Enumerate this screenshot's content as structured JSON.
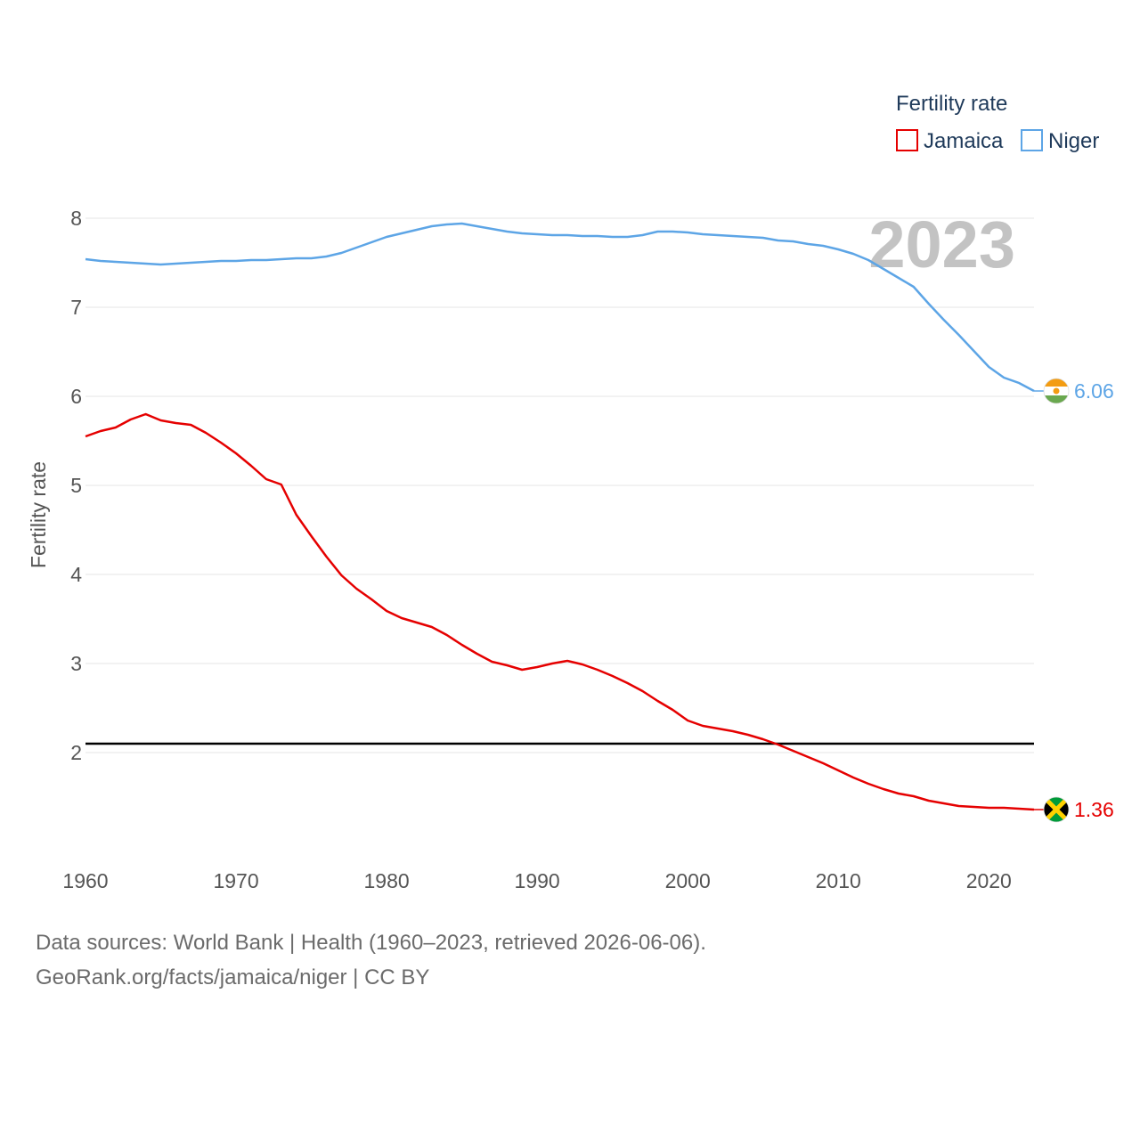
{
  "chart_data": {
    "type": "line",
    "legend_title": "Fertility rate",
    "ylabel": "Fertility rate",
    "year_label": "2023",
    "x_ticks": [
      "1960",
      "1970",
      "1980",
      "1990",
      "2000",
      "2010",
      "2020"
    ],
    "y_ticks": [
      "2",
      "3",
      "4",
      "5",
      "6",
      "7",
      "8"
    ],
    "xlim": [
      1960,
      2023
    ],
    "ylim": [
      1.0,
      8.3
    ],
    "reference_line": {
      "value": 2.1,
      "color": "#000000"
    },
    "series": [
      {
        "name": "Jamaica",
        "color": "#e50000",
        "end_label": "1.36",
        "x": [
          1960,
          1961,
          1962,
          1963,
          1964,
          1965,
          1966,
          1967,
          1968,
          1969,
          1970,
          1971,
          1972,
          1973,
          1974,
          1975,
          1976,
          1977,
          1978,
          1979,
          1980,
          1981,
          1982,
          1983,
          1984,
          1985,
          1986,
          1987,
          1988,
          1989,
          1990,
          1991,
          1992,
          1993,
          1994,
          1995,
          1996,
          1997,
          1998,
          1999,
          2000,
          2001,
          2002,
          2003,
          2004,
          2005,
          2006,
          2007,
          2008,
          2009,
          2010,
          2011,
          2012,
          2013,
          2014,
          2015,
          2016,
          2017,
          2018,
          2019,
          2020,
          2021,
          2022,
          2023
        ],
        "values": [
          5.55,
          5.61,
          5.65,
          5.74,
          5.8,
          5.73,
          5.7,
          5.68,
          5.59,
          5.48,
          5.36,
          5.22,
          5.07,
          5.01,
          4.67,
          4.43,
          4.2,
          3.99,
          3.84,
          3.72,
          3.59,
          3.51,
          3.46,
          3.41,
          3.32,
          3.21,
          3.11,
          3.02,
          2.98,
          2.93,
          2.96,
          3.0,
          3.03,
          2.99,
          2.93,
          2.86,
          2.78,
          2.69,
          2.58,
          2.48,
          2.36,
          2.3,
          2.27,
          2.24,
          2.2,
          2.15,
          2.09,
          2.02,
          1.95,
          1.88,
          1.8,
          1.72,
          1.65,
          1.59,
          1.54,
          1.51,
          1.46,
          1.43,
          1.4,
          1.39,
          1.38,
          1.38,
          1.37,
          1.36
        ]
      },
      {
        "name": "Niger",
        "color": "#5da5e6",
        "end_label": "6.06",
        "x": [
          1960,
          1961,
          1962,
          1963,
          1964,
          1965,
          1966,
          1967,
          1968,
          1969,
          1970,
          1971,
          1972,
          1973,
          1974,
          1975,
          1976,
          1977,
          1978,
          1979,
          1980,
          1981,
          1982,
          1983,
          1984,
          1985,
          1986,
          1987,
          1988,
          1989,
          1990,
          1991,
          1992,
          1993,
          1994,
          1995,
          1996,
          1997,
          1998,
          1999,
          2000,
          2001,
          2002,
          2003,
          2004,
          2005,
          2006,
          2007,
          2008,
          2009,
          2010,
          2011,
          2012,
          2013,
          2014,
          2015,
          2016,
          2017,
          2018,
          2019,
          2020,
          2021,
          2022,
          2023
        ],
        "values": [
          7.54,
          7.52,
          7.51,
          7.5,
          7.49,
          7.48,
          7.49,
          7.5,
          7.51,
          7.52,
          7.52,
          7.53,
          7.53,
          7.54,
          7.55,
          7.55,
          7.57,
          7.61,
          7.67,
          7.73,
          7.79,
          7.83,
          7.87,
          7.91,
          7.93,
          7.94,
          7.91,
          7.88,
          7.85,
          7.83,
          7.82,
          7.81,
          7.81,
          7.8,
          7.8,
          7.79,
          7.79,
          7.81,
          7.85,
          7.85,
          7.84,
          7.82,
          7.81,
          7.8,
          7.79,
          7.78,
          7.75,
          7.74,
          7.71,
          7.69,
          7.65,
          7.6,
          7.53,
          7.43,
          7.33,
          7.23,
          7.04,
          6.86,
          6.69,
          6.51,
          6.33,
          6.21,
          6.15,
          6.06
        ]
      }
    ]
  },
  "footer": {
    "line1": "Data sources: World Bank | Health (1960–2023, retrieved 2026-06-06).",
    "line2": "GeoRank.org/facts/jamaica/niger | CC BY"
  }
}
